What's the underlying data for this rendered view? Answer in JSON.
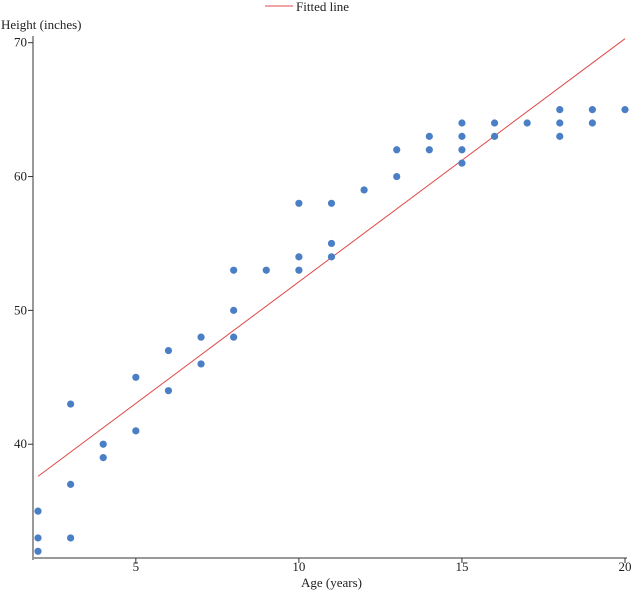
{
  "chart_data": {
    "type": "scatter",
    "xlabel": "Age (years)",
    "ylabel": "Height (inches)",
    "xlim": [
      2,
      20
    ],
    "ylim": [
      31.5,
      70.5
    ],
    "x_ticks": [
      5,
      10,
      15,
      20
    ],
    "y_ticks": [
      40,
      50,
      60,
      70
    ],
    "grid": false,
    "legend": {
      "position": "top-center",
      "entries": [
        "Fitted line"
      ]
    },
    "colors": {
      "points": "#4a7fc6",
      "fitted_line": "#e04848",
      "axis": "#333333"
    },
    "points": [
      [
        2,
        32
      ],
      [
        2,
        33
      ],
      [
        2,
        35
      ],
      [
        3,
        33
      ],
      [
        3,
        37
      ],
      [
        3,
        43
      ],
      [
        4,
        39
      ],
      [
        4,
        40
      ],
      [
        5,
        41
      ],
      [
        5,
        45
      ],
      [
        6,
        44
      ],
      [
        6,
        47
      ],
      [
        7,
        46
      ],
      [
        7,
        48
      ],
      [
        8,
        48
      ],
      [
        8,
        50
      ],
      [
        8,
        53
      ],
      [
        9,
        53
      ],
      [
        10,
        53
      ],
      [
        10,
        54
      ],
      [
        10,
        58
      ],
      [
        11,
        54
      ],
      [
        11,
        55
      ],
      [
        11,
        58
      ],
      [
        12,
        59
      ],
      [
        13,
        60
      ],
      [
        13,
        62
      ],
      [
        14,
        62
      ],
      [
        14,
        63
      ],
      [
        15,
        61
      ],
      [
        15,
        62
      ],
      [
        15,
        63
      ],
      [
        15,
        64
      ],
      [
        16,
        63
      ],
      [
        16,
        64
      ],
      [
        17,
        64
      ],
      [
        18,
        63
      ],
      [
        18,
        64
      ],
      [
        18,
        65
      ],
      [
        19,
        64
      ],
      [
        19,
        65
      ],
      [
        20,
        65
      ]
    ],
    "fitted_line": {
      "name": "Fitted line",
      "x": [
        2,
        20
      ],
      "y": [
        37.6,
        70.3
      ]
    }
  }
}
